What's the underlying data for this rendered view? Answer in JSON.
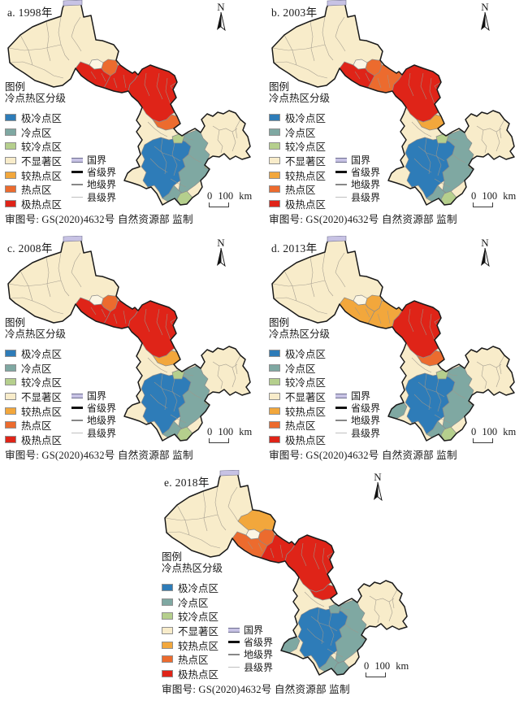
{
  "figure": {
    "shared": {
      "north_label": "N",
      "legend_title": "图例",
      "legend_subtitle": "冷点热区分级",
      "classes": [
        {
          "key": "xc",
          "label": "极冷点区",
          "color": "#2E7CB8"
        },
        {
          "key": "c",
          "label": "冷点区",
          "color": "#7FA8A2"
        },
        {
          "key": "rc",
          "label": "较冷点区",
          "color": "#B5CF8D"
        },
        {
          "key": "ns",
          "label": "不显著区",
          "color": "#F8ECCA"
        },
        {
          "key": "rh",
          "label": "较热点区",
          "color": "#F2A73C"
        },
        {
          "key": "h",
          "label": "热点区",
          "color": "#EC6B2E"
        },
        {
          "key": "xh",
          "label": "极热点区",
          "color": "#DF2418"
        }
      ],
      "boundaries": [
        {
          "key": "national",
          "label": "国界",
          "color": "#C7C2E4"
        },
        {
          "key": "province",
          "label": "省级界",
          "color": "#111111"
        },
        {
          "key": "prefecture",
          "label": "地级界",
          "color": "#8A8A8A"
        },
        {
          "key": "county",
          "label": "县级界",
          "color": "#C0C0C0"
        }
      ],
      "scale_text": "0  100 km",
      "caption": "审图号: GS(2020)4632号 自然资源部 监制"
    },
    "panels": [
      {
        "id": "a",
        "title": "a. 1998年",
        "zones": {
          "north_patch": "ns",
          "corridor_a": "xh",
          "corridor_b": "xh",
          "central": "xh",
          "hex_patch": "h",
          "central_south": "h",
          "south_blue": "xc",
          "south_teal": "c",
          "south_teal_s": "c",
          "green_n": "rc",
          "green_e": "rc",
          "green_tip": "rc",
          "west_protrusion": "ns"
        }
      },
      {
        "id": "b",
        "title": "b. 2003年",
        "zones": {
          "north_patch": "ns",
          "corridor_a": "xh",
          "corridor_b": "h",
          "central": "xh",
          "hex_patch": "h",
          "central_south": "rh",
          "south_blue": "xc",
          "south_teal": "c",
          "south_teal_s": "c",
          "green_n": "rc",
          "green_e": "rc",
          "green_tip": "rc",
          "west_protrusion": "ns"
        }
      },
      {
        "id": "c",
        "title": "c. 2008年",
        "zones": {
          "north_patch": "ns",
          "corridor_a": "xh",
          "corridor_b": "xh",
          "central": "xh",
          "hex_patch": "h",
          "central_south": "rh",
          "south_blue": "xc",
          "south_teal": "c",
          "south_teal_s": "c",
          "green_n": "rc",
          "green_e": "rc",
          "green_tip": "rc",
          "west_protrusion": "ns"
        }
      },
      {
        "id": "d",
        "title": "d. 2013年",
        "zones": {
          "north_patch": "ns",
          "corridor_a": "rh",
          "corridor_b": "rh",
          "central": "xh",
          "hex_patch": "rh",
          "central_south": "h",
          "south_blue": "xc",
          "south_teal": "c",
          "south_teal_s": "c",
          "green_n": "rc",
          "green_e": "rc",
          "green_tip": "rc",
          "west_protrusion": "c"
        }
      },
      {
        "id": "e",
        "title": "e. 2018年",
        "zones": {
          "north_patch": "rh",
          "corridor_a": "h",
          "corridor_b": "xh",
          "central": "xh",
          "hex_patch": "h",
          "central_south": "xh",
          "south_blue": "xc",
          "south_teal": "c",
          "south_teal_s": "c",
          "green_n": "c",
          "green_e": "rc",
          "green_tip": "c",
          "west_protrusion": "c"
        }
      }
    ]
  }
}
